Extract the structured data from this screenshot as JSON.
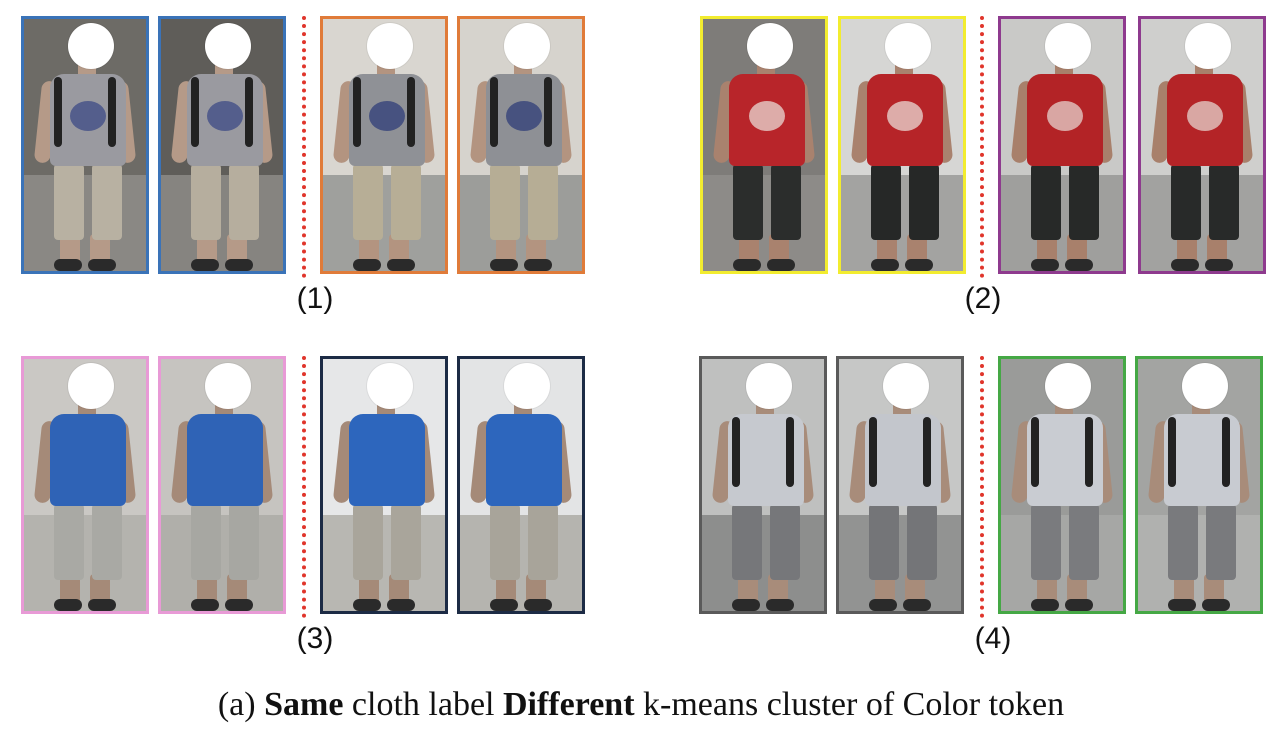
{
  "groups": [
    {
      "label": "(1)",
      "crops": [
        {
          "border": "#3a73b8",
          "shirt": "#9a9aa0",
          "pants": "#b8b1a2",
          "logo": "#3c4a86",
          "arm": "#b59a88",
          "wall": "#6d6b66",
          "floor": "#8a8884"
        },
        {
          "border": "#3a73b8",
          "shirt": "#9a9aa0",
          "pants": "#b6ae9e",
          "logo": "#3c4a86",
          "arm": "#b59a88",
          "wall": "#5f5d59",
          "floor": "#868480"
        },
        {
          "border": "#e07b39",
          "shirt": "#8f9196",
          "pants": "#b7ae96",
          "logo": "#2f3d78",
          "arm": "#b39480",
          "wall": "#d9d6d0",
          "floor": "#9fa09d"
        },
        {
          "border": "#e07b39",
          "shirt": "#8e9095",
          "pants": "#b6ad95",
          "logo": "#2f3d78",
          "arm": "#b39480",
          "wall": "#d6d3cd",
          "floor": "#9c9d9a"
        }
      ]
    },
    {
      "label": "(2)",
      "crops": [
        {
          "border": "#f2ec2f",
          "shirt": "#b8252a",
          "pants": "#2b2d2c",
          "logo": "#e9d9d4",
          "arm": "#a9826e",
          "wall": "#7e7c79",
          "floor": "#8d8b88"
        },
        {
          "border": "#f2ec2f",
          "shirt": "#b62428",
          "pants": "#262827",
          "logo": "#e9d9d4",
          "arm": "#a9826e",
          "wall": "#d6d6d4",
          "floor": "#a3a3a1"
        },
        {
          "border": "#8e3a8e",
          "shirt": "#b32326",
          "pants": "#272928",
          "logo": "#e5d3ce",
          "arm": "#a8806b",
          "wall": "#c9c9c7",
          "floor": "#9f9f9d"
        },
        {
          "border": "#8e3a8e",
          "shirt": "#b42427",
          "pants": "#282a29",
          "logo": "#e5d3ce",
          "arm": "#a8806b",
          "wall": "#cfcfcd",
          "floor": "#a2a2a0"
        }
      ]
    },
    {
      "label": "(3)",
      "crops": [
        {
          "border": "#e89ad6",
          "shirt": "#2f63b6",
          "pants": "#a9a9a4",
          "logo": "#2f63b6",
          "arm": "#a58a78",
          "wall": "#cac8c4",
          "floor": "#b4b3ae"
        },
        {
          "border": "#e89ad6",
          "shirt": "#2f63b6",
          "pants": "#a7a7a2",
          "logo": "#2f63b6",
          "arm": "#a58a78",
          "wall": "#c6c4c0",
          "floor": "#b0afaa"
        },
        {
          "border": "#1c2b45",
          "shirt": "#2d66bd",
          "pants": "#a9a59b",
          "logo": "#2d66bd",
          "arm": "#a58a78",
          "wall": "#e6e7e8",
          "floor": "#b8b7b2"
        },
        {
          "border": "#1c2b45",
          "shirt": "#2d66bd",
          "pants": "#a8a49a",
          "logo": "#2d66bd",
          "arm": "#a58a78",
          "wall": "#e3e4e5",
          "floor": "#b5b4af"
        }
      ]
    },
    {
      "label": "(4)",
      "crops": [
        {
          "border": "#5a5a5a",
          "shirt": "#c6c9cf",
          "pants": "#76777a",
          "logo": "#c6c9cf",
          "arm": "#a88c7a",
          "wall": "#bfc0bf",
          "floor": "#8d8e8d"
        },
        {
          "border": "#5a5a5a",
          "shirt": "#c3c6cc",
          "pants": "#747578",
          "logo": "#c3c6cc",
          "arm": "#a88c7a",
          "wall": "#c6c7c6",
          "floor": "#929392"
        },
        {
          "border": "#45a845",
          "shirt": "#c9ccd2",
          "pants": "#7a7b7e",
          "logo": "#c9ccd2",
          "arm": "#a88c7a",
          "wall": "#9a9b99",
          "floor": "#a6a7a5"
        },
        {
          "border": "#45a845",
          "shirt": "#c8cbd1",
          "pants": "#797a7d",
          "logo": "#c8cbd1",
          "arm": "#a88c7a",
          "wall": "#a3a4a2",
          "floor": "#b0b1af"
        }
      ]
    }
  ],
  "caption": {
    "prefix": "(a) ",
    "bold1": "Same",
    "mid": " cloth label ",
    "bold2": "Different",
    "suffix": " k-means cluster of Color token"
  }
}
